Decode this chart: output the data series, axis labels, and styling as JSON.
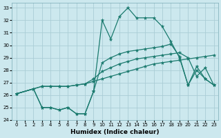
{
  "xlabel": "Humidex (Indice chaleur)",
  "xlim": [
    -0.5,
    23.5
  ],
  "ylim": [
    24,
    33.4
  ],
  "yticks": [
    24,
    25,
    26,
    27,
    28,
    29,
    30,
    31,
    32,
    33
  ],
  "xticks": [
    0,
    1,
    2,
    3,
    4,
    5,
    6,
    7,
    8,
    9,
    10,
    11,
    12,
    13,
    14,
    15,
    16,
    17,
    18,
    19,
    20,
    21,
    22,
    23
  ],
  "bg_color": "#cce8ee",
  "grid_color": "#aacdd6",
  "line_color": "#1a7a6e",
  "line1_x": [
    0,
    2,
    3,
    4,
    5,
    6,
    7,
    8,
    9,
    10,
    11,
    12,
    13,
    14,
    15,
    16,
    17,
    18,
    19,
    20,
    21,
    22,
    23
  ],
  "line1_y": [
    26.1,
    26.5,
    26.7,
    26.7,
    26.7,
    26.7,
    26.8,
    26.9,
    27.1,
    27.3,
    27.5,
    27.7,
    27.9,
    28.1,
    28.3,
    28.5,
    28.6,
    28.7,
    28.8,
    28.9,
    29.0,
    29.1,
    29.2
  ],
  "line2_x": [
    0,
    2,
    3,
    4,
    5,
    6,
    7,
    8,
    9,
    10,
    11,
    12,
    13,
    14,
    15,
    16,
    17,
    18,
    19,
    20,
    21,
    22,
    23
  ],
  "line2_y": [
    26.1,
    26.5,
    26.7,
    26.7,
    26.7,
    26.7,
    26.8,
    26.9,
    27.3,
    27.9,
    28.2,
    28.5,
    28.7,
    28.9,
    29.0,
    29.1,
    29.2,
    29.3,
    29.4,
    29.0,
    27.5,
    28.2,
    26.8
  ],
  "line3_x": [
    0,
    2,
    3,
    4,
    5,
    6,
    7,
    8,
    9,
    10,
    11,
    12,
    13,
    14,
    15,
    16,
    17,
    18,
    19,
    20,
    21,
    22,
    23
  ],
  "line3_y": [
    26.1,
    26.5,
    25.0,
    25.0,
    24.8,
    25.0,
    24.5,
    24.5,
    26.3,
    28.6,
    29.0,
    29.3,
    29.5,
    29.6,
    29.7,
    29.8,
    29.9,
    30.1,
    29.1,
    26.8,
    28.0,
    27.3,
    26.8
  ],
  "line4_x": [
    0,
    2,
    3,
    4,
    5,
    6,
    7,
    8,
    9,
    10,
    11,
    12,
    13,
    14,
    15,
    16,
    17,
    18,
    19,
    20,
    21,
    22,
    23
  ],
  "line4_y": [
    26.1,
    26.5,
    25.0,
    25.0,
    24.8,
    25.0,
    24.5,
    24.5,
    26.3,
    32.0,
    30.5,
    32.3,
    33.0,
    32.2,
    32.2,
    32.2,
    31.5,
    30.3,
    29.0,
    26.8,
    28.3,
    27.3,
    26.8
  ],
  "marker": "*",
  "markersize": 3.5,
  "linewidth": 0.9,
  "tick_fontsize": 5.0,
  "xlabel_fontsize": 6.5
}
